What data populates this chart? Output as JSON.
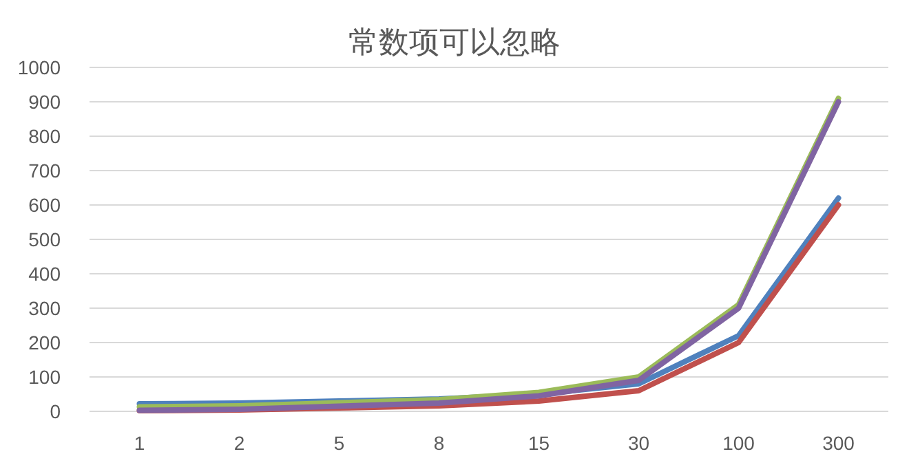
{
  "chart_data": {
    "type": "line",
    "title": "常数项可以忽略",
    "categories": [
      "1",
      "2",
      "5",
      "8",
      "15",
      "30",
      "100",
      "300"
    ],
    "series": [
      {
        "color": "#4f81bd",
        "values": [
          22,
          24,
          30,
          36,
          50,
          80,
          220,
          620
        ]
      },
      {
        "color": "#c0504d",
        "values": [
          2,
          4,
          10,
          16,
          30,
          60,
          200,
          600
        ]
      },
      {
        "color": "#9bbb59",
        "values": [
          13,
          16,
          25,
          34,
          55,
          100,
          310,
          910
        ]
      },
      {
        "color": "#8064a2",
        "values": [
          3,
          6,
          15,
          24,
          45,
          90,
          300,
          900
        ]
      }
    ],
    "ylim": [
      0,
      1000
    ],
    "yticks": [
      0,
      100,
      200,
      300,
      400,
      500,
      600,
      700,
      800,
      900,
      1000
    ],
    "grid": "y",
    "marker": "none",
    "line_style": "solid"
  }
}
